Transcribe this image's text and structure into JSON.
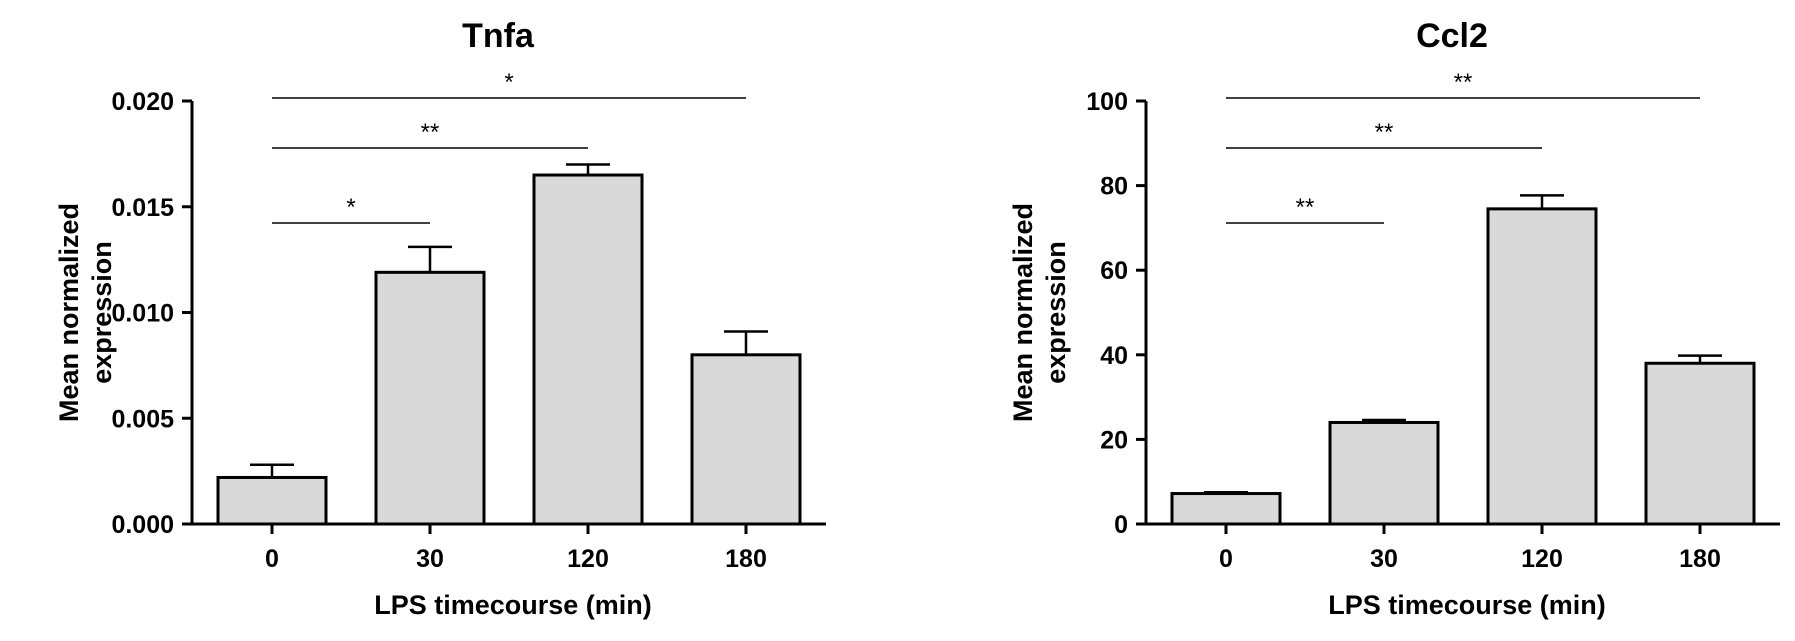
{
  "chart_data": [
    {
      "type": "bar",
      "title": "Tnfa",
      "xlabel": "LPS timecourse (min)",
      "ylabel_lines": [
        "Mean normalized",
        "expression"
      ],
      "categories": [
        "0",
        "30",
        "120",
        "180"
      ],
      "values": [
        0.0022,
        0.0119,
        0.0165,
        0.008
      ],
      "errors": [
        0.0006,
        0.0012,
        0.0005,
        0.0011
      ],
      "ylim": [
        0,
        0.02
      ],
      "yticks": [
        0.0,
        0.005,
        0.01,
        0.015,
        0.02
      ],
      "ytick_labels": [
        "0.000",
        "0.005",
        "0.010",
        "0.015",
        "0.020"
      ],
      "significance": [
        {
          "from": "0",
          "to": "30",
          "label": "*"
        },
        {
          "from": "0",
          "to": "120",
          "label": "**"
        },
        {
          "from": "0",
          "to": "180",
          "label": "*"
        }
      ],
      "bar_color": "#d9d9d9",
      "grid": false
    },
    {
      "type": "bar",
      "title": "Ccl2",
      "xlabel": "LPS timecourse (min)",
      "ylabel_lines": [
        "Mean normalized",
        "expression"
      ],
      "categories": [
        "0",
        "30",
        "120",
        "180"
      ],
      "values": [
        7.2,
        24,
        74.5,
        38
      ],
      "errors": [
        0.3,
        0.6,
        3.2,
        1.8
      ],
      "ylim": [
        0,
        100
      ],
      "yticks": [
        0,
        20,
        40,
        60,
        80,
        100
      ],
      "ytick_labels": [
        "0",
        "20",
        "40",
        "60",
        "80",
        "100"
      ],
      "significance": [
        {
          "from": "0",
          "to": "30",
          "label": "**"
        },
        {
          "from": "0",
          "to": "120",
          "label": "**"
        },
        {
          "from": "0",
          "to": "180",
          "label": "**"
        }
      ],
      "bar_color": "#d9d9d9",
      "grid": false
    }
  ]
}
